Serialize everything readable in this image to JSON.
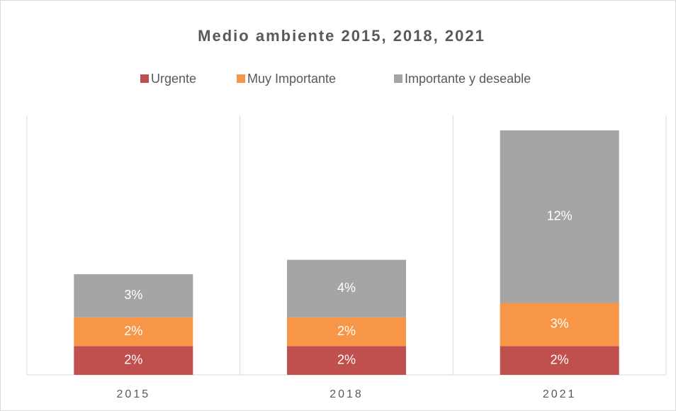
{
  "chart_data": {
    "type": "stacked_bar",
    "title": "Medio ambiente 2015, 2018, 2021",
    "categories": [
      "2015",
      "2018",
      "2021"
    ],
    "series": [
      {
        "name": "Urgente",
        "color": "#c0504d",
        "values": [
          2,
          2,
          2
        ],
        "value_labels": [
          "2%",
          "2%",
          "2%"
        ]
      },
      {
        "name": "Muy Importante",
        "color": "#f79646",
        "values": [
          2,
          2,
          3
        ],
        "value_labels": [
          "2%",
          "2%",
          "3%"
        ]
      },
      {
        "name": "Importante y deseable",
        "color": "#a5a5a5",
        "values": [
          3,
          4,
          12
        ],
        "value_labels": [
          "3%",
          "4%",
          "12%"
        ]
      }
    ],
    "legend": "top",
    "grid": true
  }
}
